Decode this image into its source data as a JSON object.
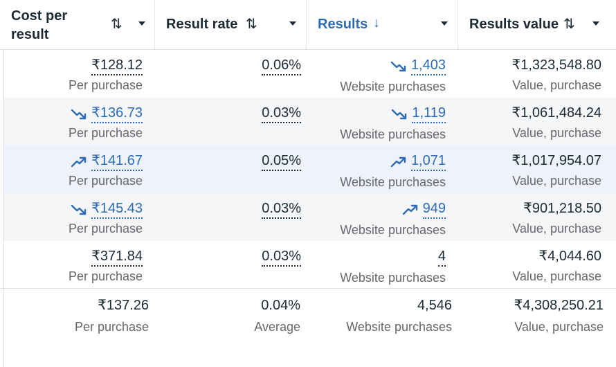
{
  "header": {
    "columns": [
      {
        "title_line1": "Cost per",
        "title_line2": "result",
        "sort_icon": "sort-up-down-icon"
      },
      {
        "title": "Result rate",
        "sort_icon": "sort-up-down-icon"
      },
      {
        "title": "Results",
        "sort_icon": "sort-down-arrow-icon",
        "active": true
      },
      {
        "title": "Results value",
        "sort_icon": "sort-up-down-icon"
      }
    ]
  },
  "rows": [
    {
      "cost": "₹128.12",
      "cost_sub": "Per purchase",
      "cost_trend": "none",
      "rate": "0.06%",
      "results": "1,403",
      "results_sub": "Website purchases",
      "results_trend": "down",
      "value": "₹1,323,548.80",
      "value_sub": "Value, purchase"
    },
    {
      "cost": "₹136.73",
      "cost_sub": "Per purchase",
      "cost_trend": "down",
      "rate": "0.03%",
      "results": "1,119",
      "results_sub": "Website purchases",
      "results_trend": "down",
      "value": "₹1,061,484.24",
      "value_sub": "Value, purchase"
    },
    {
      "cost": "₹141.67",
      "cost_sub": "Per purchase",
      "cost_trend": "up",
      "rate": "0.05%",
      "results": "1,071",
      "results_sub": "Website purchases",
      "results_trend": "up",
      "value": "₹1,017,954.07",
      "value_sub": "Value, purchase"
    },
    {
      "cost": "₹145.43",
      "cost_sub": "Per purchase",
      "cost_trend": "down",
      "rate": "0.03%",
      "results": "949",
      "results_sub": "Website purchases",
      "results_trend": "up",
      "value": "₹901,218.50",
      "value_sub": "Value, purchase"
    },
    {
      "cost": "₹371.84",
      "cost_sub": "Per purchase",
      "cost_trend": "none",
      "rate": "0.03%",
      "results": "4",
      "results_sub": "Website purchases",
      "results_trend": "none",
      "value": "₹4,044.60",
      "value_sub": "Value, purchase"
    }
  ],
  "summary": {
    "cost": "₹137.26",
    "cost_sub": "Per purchase",
    "rate": "0.04%",
    "rate_sub": "Average",
    "results": "4,546",
    "results_sub": "Website purchases",
    "value": "₹4,308,250.21",
    "value_sub": "Value, purchase"
  },
  "colors": {
    "link": "#2d6cb5",
    "text": "#1c2b33",
    "muted": "#65676b",
    "row_shade": "#f5f6f7",
    "row_highlight": "#eef3fb"
  }
}
